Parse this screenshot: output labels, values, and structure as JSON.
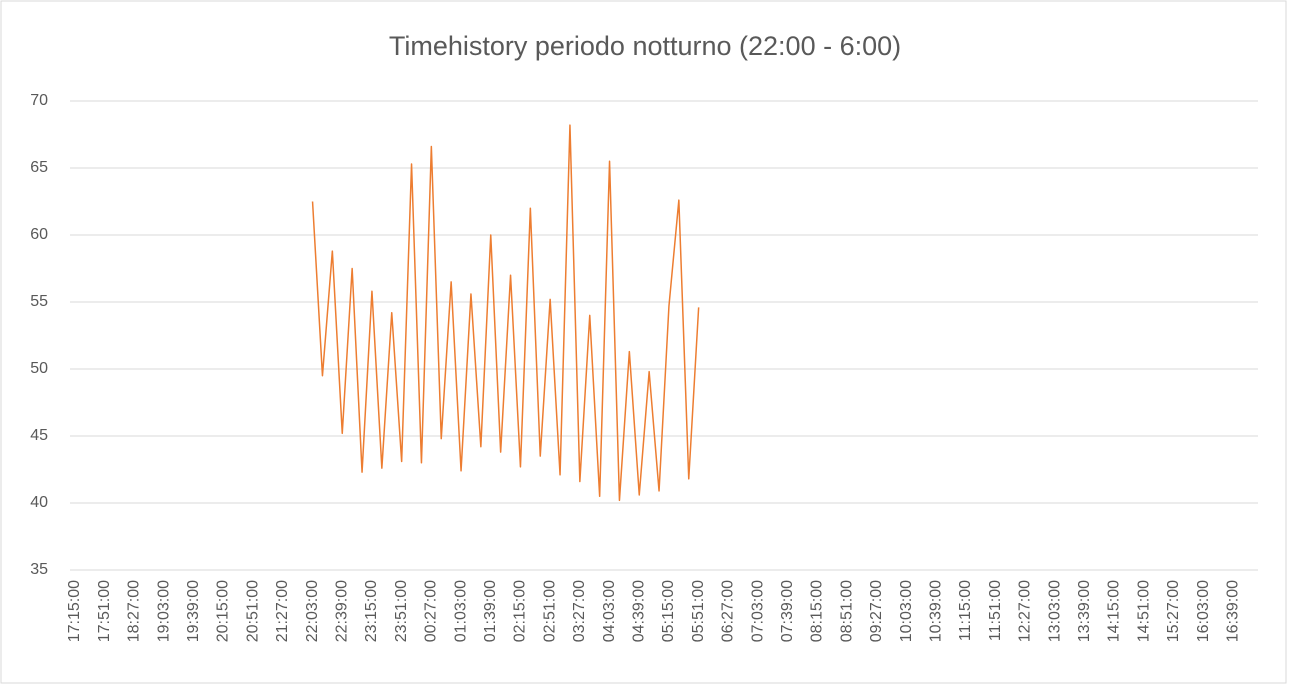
{
  "chart_data": {
    "type": "line",
    "title": "Timehistory periodo notturno (22:00 - 6:00)",
    "categories": [
      "17:15:00",
      null,
      null,
      "17:51:00",
      null,
      null,
      "18:27:00",
      null,
      null,
      "19:03:00",
      null,
      null,
      "19:39:00",
      null,
      null,
      "20:15:00",
      null,
      null,
      "20:51:00",
      null,
      null,
      "21:27:00",
      null,
      null,
      "22:03:00",
      null,
      null,
      "22:39:00",
      null,
      null,
      "23:15:00",
      null,
      null,
      "23:51:00",
      null,
      null,
      "00:27:00",
      null,
      null,
      "01:03:00",
      null,
      null,
      "01:39:00",
      null,
      null,
      "02:15:00",
      null,
      null,
      "02:51:00",
      null,
      null,
      "03:27:00",
      null,
      null,
      "04:03:00",
      null,
      null,
      "04:39:00",
      null,
      null,
      "05:15:00",
      null,
      null,
      "05:51:00",
      null,
      null,
      "06:27:00",
      null,
      null,
      "07:03:00",
      null,
      null,
      "07:39:00",
      null,
      null,
      "08:15:00",
      null,
      null,
      "08:51:00",
      null,
      null,
      "09:27:00",
      null,
      null,
      "10:03:00",
      null,
      null,
      "10:39:00",
      null,
      null,
      "11:15:00",
      null,
      null,
      "11:51:00",
      null,
      null,
      "12:27:00",
      null,
      null,
      "13:03:00",
      null,
      null,
      "13:39:00",
      null,
      null,
      "14:15:00",
      null,
      null,
      "14:51:00",
      null,
      null,
      "15:27:00",
      null,
      null,
      "16:03:00",
      null,
      null,
      "16:39:00",
      null,
      null
    ],
    "values": [
      null,
      null,
      null,
      null,
      null,
      null,
      null,
      null,
      null,
      null,
      null,
      null,
      null,
      null,
      null,
      null,
      null,
      null,
      null,
      null,
      null,
      null,
      null,
      null,
      62.5,
      49.5,
      58.8,
      45.2,
      57.5,
      42.3,
      55.8,
      42.6,
      54.2,
      43.1,
      65.3,
      43.0,
      66.6,
      44.8,
      56.5,
      42.4,
      55.6,
      44.2,
      60.0,
      43.8,
      57.0,
      42.7,
      62.0,
      43.5,
      55.2,
      42.1,
      68.2,
      41.6,
      54.0,
      40.5,
      65.5,
      40.2,
      51.3,
      40.6,
      49.8,
      40.9,
      54.7,
      62.6,
      41.8,
      54.6,
      null,
      null,
      null,
      null,
      null,
      null,
      null,
      null,
      null,
      null,
      null,
      null,
      null,
      null,
      null,
      null,
      null,
      null,
      null,
      null,
      null,
      null,
      null,
      null,
      null,
      null,
      null,
      null,
      null,
      null,
      null,
      null,
      null,
      null,
      null,
      null,
      null,
      null,
      null,
      null,
      null,
      null,
      null,
      null,
      null,
      null,
      null,
      null,
      null,
      null,
      null,
      null,
      null,
      null,
      null,
      null
    ],
    "color": "#ed7d31",
    "ylim": [
      35,
      70
    ],
    "yticks": [
      35,
      40,
      45,
      50,
      55,
      60,
      65,
      70
    ],
    "grid": true
  }
}
